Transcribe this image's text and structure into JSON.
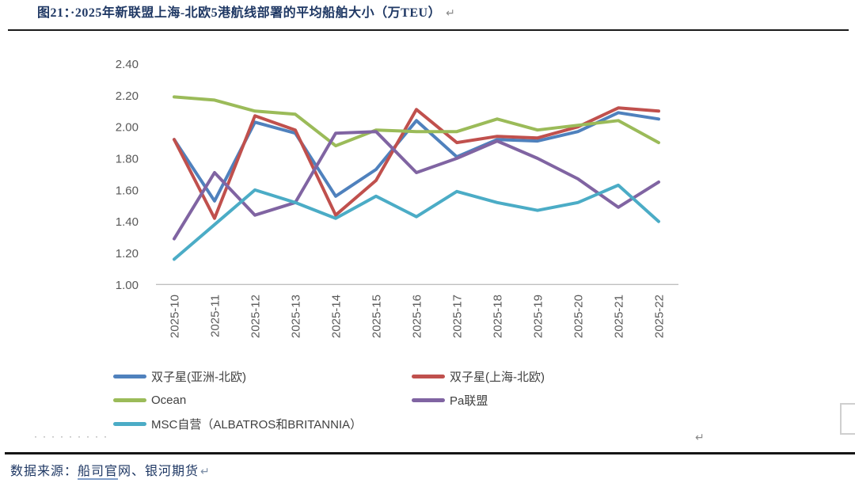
{
  "title": {
    "label": "图21：·2025年新联盟上海-北欧5港航线部署的平均船舶大小（万TEU）",
    "return_mark": "↵"
  },
  "chart_data": {
    "type": "line",
    "title": "2025年新联盟上海-北欧5港航线部署的平均船舶大小（万TEU）",
    "x": [
      "2025-10",
      "2025-11",
      "2025-12",
      "2025-13",
      "2025-14",
      "2025-15",
      "2025-16",
      "2025-17",
      "2025-18",
      "2025-19",
      "2025-20",
      "2025-21",
      "2025-22"
    ],
    "series": [
      {
        "name": "双子星(亚洲-北欧)",
        "color": "#4F81BD",
        "values": [
          1.92,
          1.53,
          2.03,
          1.96,
          1.56,
          1.73,
          2.04,
          1.81,
          1.92,
          1.91,
          1.97,
          2.09,
          2.05
        ]
      },
      {
        "name": "双子星(上海-北欧)",
        "color": "#C0504D",
        "values": [
          1.92,
          1.42,
          2.07,
          1.98,
          1.44,
          1.66,
          2.11,
          1.9,
          1.94,
          1.93,
          2.0,
          2.12,
          2.1
        ]
      },
      {
        "name": "Ocean",
        "color": "#9BBB59",
        "values": [
          2.19,
          2.17,
          2.1,
          2.08,
          1.88,
          1.98,
          1.97,
          1.97,
          2.05,
          1.98,
          2.01,
          2.04,
          1.9
        ]
      },
      {
        "name": "Pa联盟",
        "color": "#8064A2",
        "values": [
          1.29,
          1.71,
          1.44,
          1.52,
          1.96,
          1.97,
          1.71,
          1.8,
          1.91,
          1.8,
          1.67,
          1.49,
          1.65
        ]
      },
      {
        "name": "MSC自营（ALBATROS和BRITANNIA）",
        "color": "#4BACC6",
        "values": [
          1.16,
          1.38,
          1.6,
          1.52,
          1.42,
          1.56,
          1.43,
          1.59,
          1.52,
          1.47,
          1.52,
          1.63,
          1.4
        ]
      }
    ],
    "ylim": [
      1.0,
      2.4
    ],
    "ytick_step": 0.2,
    "yticks": [
      "2.40",
      "2.20",
      "2.00",
      "1.80",
      "1.60",
      "1.40",
      "1.20",
      "1.00"
    ],
    "xlabel": "",
    "ylabel": "",
    "grid": false,
    "legend_position": "bottom-left",
    "axis_color": "#BFBFBF",
    "tick_label_color": "#595959",
    "line_width": 4
  },
  "footer": {
    "dots": "·········",
    "legend_return_mark": "↵",
    "source_prefix": "数据来源：",
    "source_link": "船司官",
    "source_suffix": "网、银河期货",
    "source_return_mark": "↵"
  }
}
